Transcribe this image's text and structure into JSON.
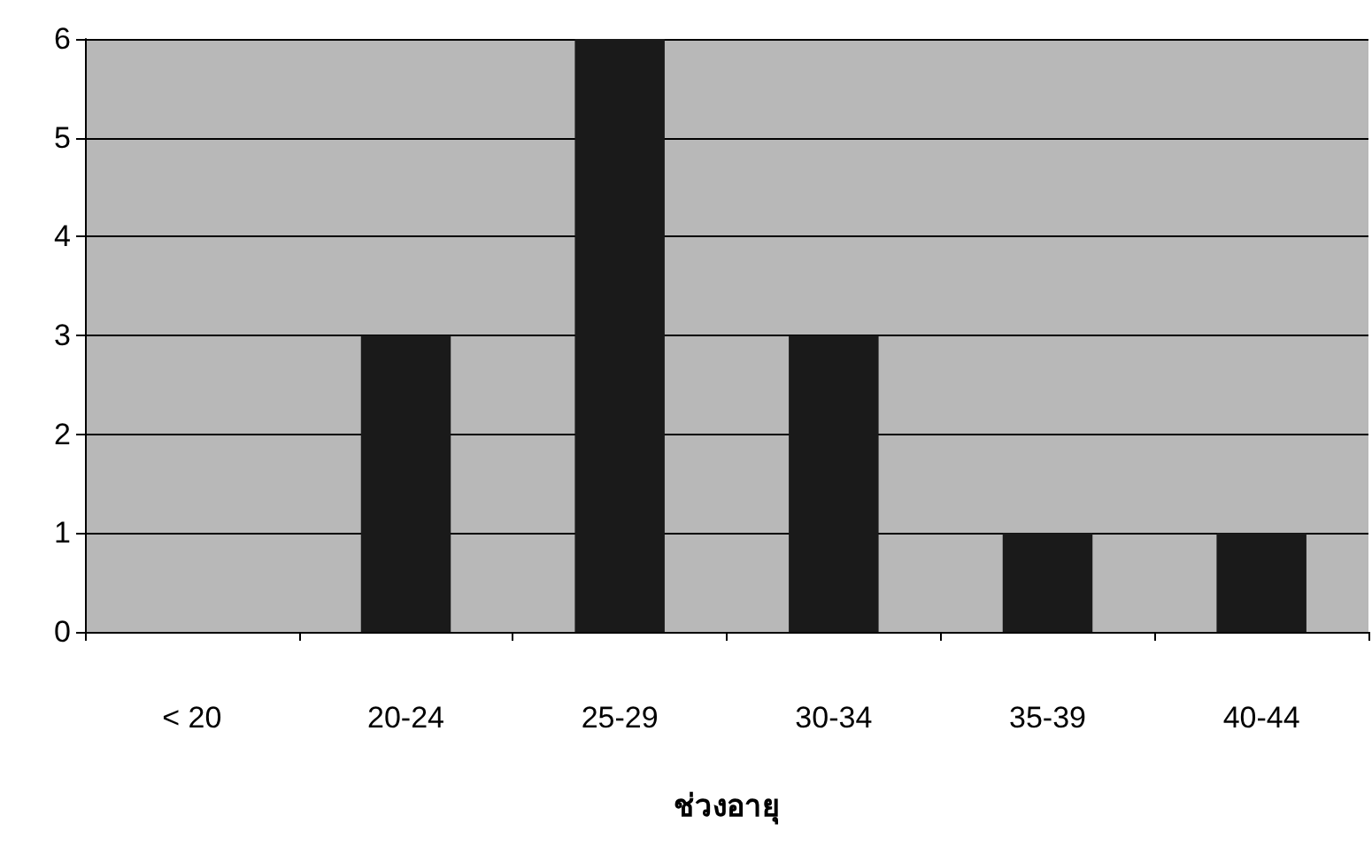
{
  "chart_data": {
    "type": "bar",
    "xlabel": "ช่วงอายุ",
    "categories": [
      "< 20",
      "20-24",
      "25-29",
      "30-34",
      "35-39",
      "40-44"
    ],
    "values": [
      0,
      3,
      6,
      3,
      1,
      1
    ],
    "color": "#1a1a1a",
    "ylim": [
      0,
      6
    ],
    "yticks": [
      0,
      1,
      2,
      3,
      4,
      5,
      6
    ],
    "grid": "y"
  }
}
